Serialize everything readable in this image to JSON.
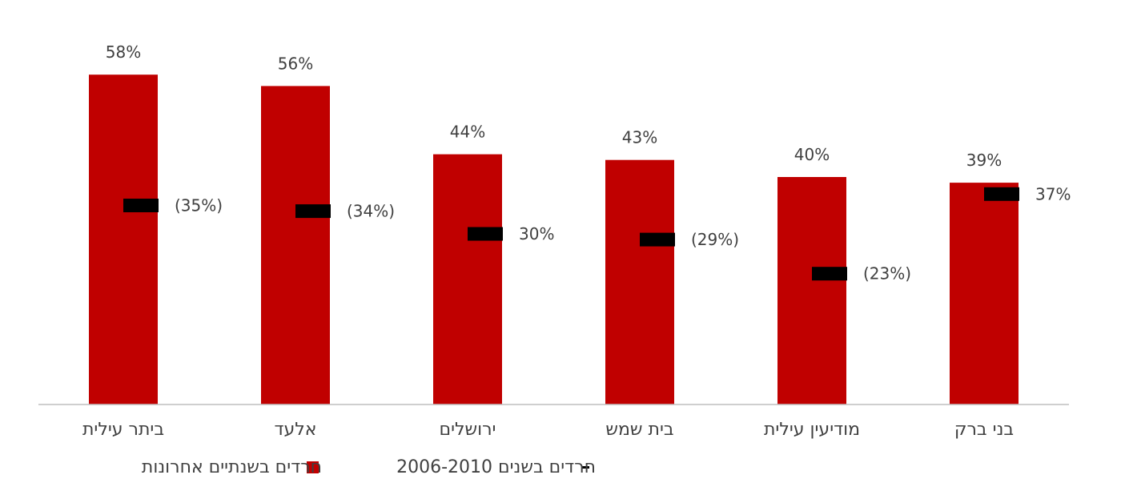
{
  "chart_data": {
    "type": "bar",
    "categories": [
      "ביתר עילית",
      "אלעד",
      "ירושלים",
      "בית שמש",
      "מודיעין עילית",
      "בני ברק"
    ],
    "series": [
      {
        "name": "חרדים בשנתיים אחרונות",
        "values": [
          58,
          56,
          44,
          43,
          40,
          39
        ],
        "labels": [
          "58%",
          "56%",
          "44%",
          "43%",
          "40%",
          "39%"
        ]
      },
      {
        "name": "חרדים בשנים 2006-2010",
        "values": [
          35,
          34,
          30,
          29,
          23,
          37
        ],
        "labels": [
          "(35%)",
          "(34%)",
          "30%",
          "(29%)",
          "(23%)",
          "37%"
        ]
      }
    ],
    "ylim": [
      0,
      60
    ],
    "grid": false,
    "legend": "bottom",
    "colors": {
      "bar": "#C00000",
      "marker": "#000000",
      "axis": "#BFBFBF"
    }
  }
}
